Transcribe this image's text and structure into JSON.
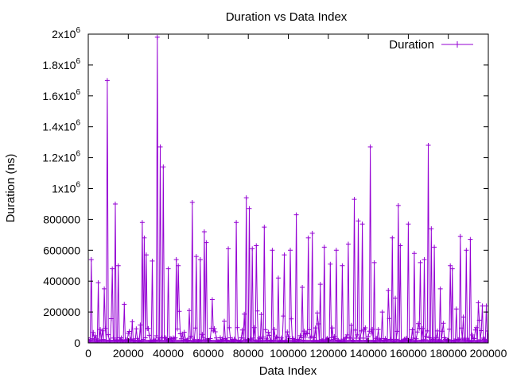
{
  "chart_data": {
    "type": "line",
    "title": "Duration vs Data Index",
    "xlabel": "Data Index",
    "ylabel": "Duration (ns)",
    "xlim": [
      0,
      200000
    ],
    "ylim": [
      0,
      2000000
    ],
    "x_ticks": [
      "0",
      "20000",
      "40000",
      "60000",
      "80000",
      "100000",
      "120000",
      "140000",
      "160000",
      "180000",
      "200000"
    ],
    "y_ticks": [
      "0",
      "200000",
      "400000",
      "600000",
      "800000",
      "1x10^6",
      "1.2x10^6",
      "1.4x10^6",
      "1.6x10^6",
      "1.8x10^6",
      "2x10^6"
    ],
    "grid": false,
    "legend": {
      "position": "top-right"
    },
    "series": [
      {
        "name": "Duration",
        "color": "#9400d3",
        "marker": "plus",
        "description": "~200000 samples; mostly below 100000 ns with spikes",
        "spikes": [
          [
            1500,
            540000
          ],
          [
            5000,
            390000
          ],
          [
            8000,
            350000
          ],
          [
            9500,
            1700000
          ],
          [
            12000,
            480000
          ],
          [
            13500,
            900000
          ],
          [
            15000,
            500000
          ],
          [
            18000,
            250000
          ],
          [
            27000,
            780000
          ],
          [
            28000,
            680000
          ],
          [
            29000,
            570000
          ],
          [
            32000,
            530000
          ],
          [
            34500,
            1980000
          ],
          [
            36000,
            1270000
          ],
          [
            37500,
            1140000
          ],
          [
            40000,
            480000
          ],
          [
            44000,
            540000
          ],
          [
            45000,
            500000
          ],
          [
            52000,
            910000
          ],
          [
            54000,
            560000
          ],
          [
            56000,
            540000
          ],
          [
            58000,
            720000
          ],
          [
            59000,
            650000
          ],
          [
            62000,
            280000
          ],
          [
            70000,
            610000
          ],
          [
            74000,
            780000
          ],
          [
            79000,
            940000
          ],
          [
            80500,
            870000
          ],
          [
            82000,
            610000
          ],
          [
            84000,
            630000
          ],
          [
            88000,
            750000
          ],
          [
            92000,
            600000
          ],
          [
            95000,
            420000
          ],
          [
            98000,
            570000
          ],
          [
            101000,
            600000
          ],
          [
            104000,
            830000
          ],
          [
            107000,
            360000
          ],
          [
            110000,
            680000
          ],
          [
            112000,
            710000
          ],
          [
            116000,
            380000
          ],
          [
            118000,
            620000
          ],
          [
            121000,
            510000
          ],
          [
            124000,
            600000
          ],
          [
            127000,
            500000
          ],
          [
            130000,
            640000
          ],
          [
            133000,
            930000
          ],
          [
            135000,
            790000
          ],
          [
            137000,
            770000
          ],
          [
            141000,
            1270000
          ],
          [
            143000,
            520000
          ],
          [
            147000,
            200000
          ],
          [
            150000,
            340000
          ],
          [
            152000,
            680000
          ],
          [
            153500,
            290000
          ],
          [
            155000,
            890000
          ],
          [
            156000,
            630000
          ],
          [
            160000,
            770000
          ],
          [
            163000,
            580000
          ],
          [
            166000,
            520000
          ],
          [
            168000,
            540000
          ],
          [
            170000,
            1280000
          ],
          [
            171500,
            740000
          ],
          [
            173000,
            620000
          ],
          [
            176000,
            350000
          ],
          [
            181000,
            500000
          ],
          [
            182000,
            480000
          ],
          [
            184000,
            220000
          ],
          [
            186000,
            690000
          ],
          [
            189000,
            600000
          ],
          [
            191000,
            670000
          ],
          [
            195000,
            260000
          ],
          [
            197000,
            240000
          ],
          [
            199000,
            240000
          ]
        ]
      }
    ]
  }
}
